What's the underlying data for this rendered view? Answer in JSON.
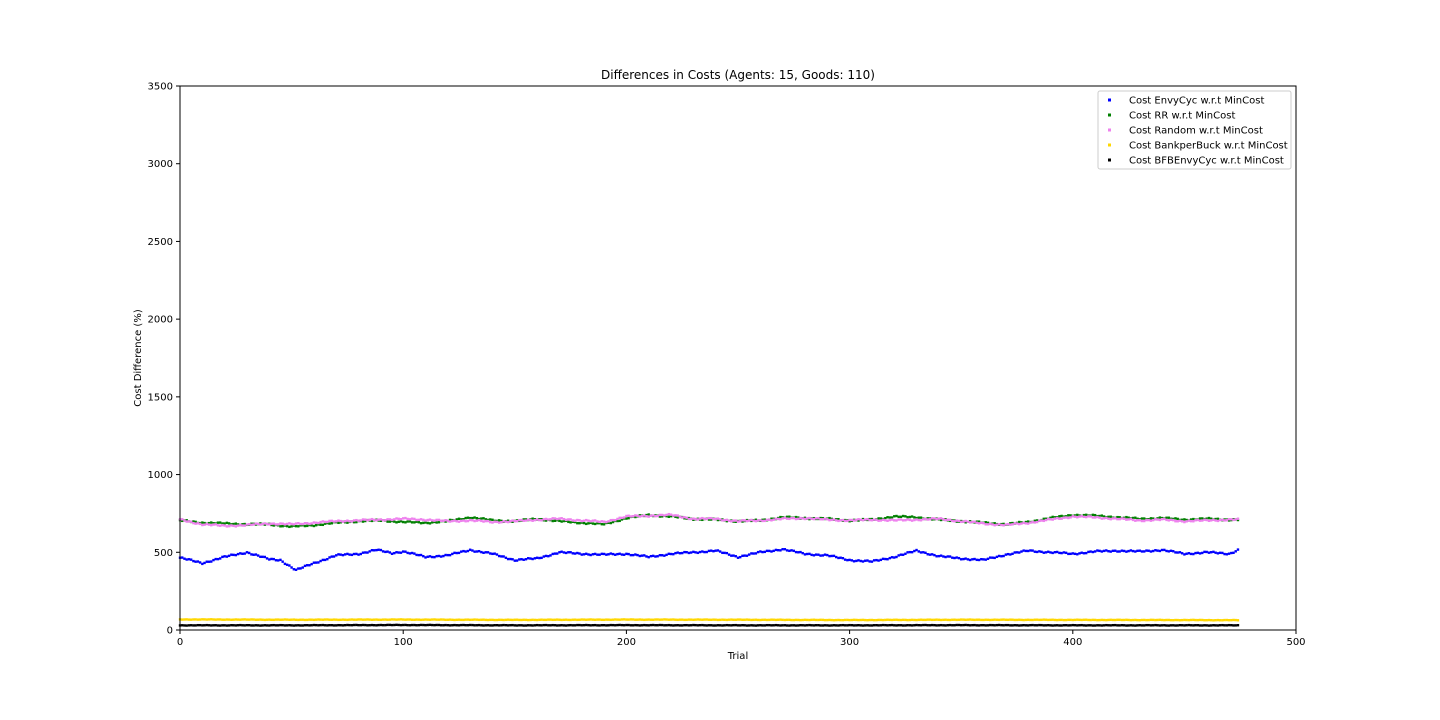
{
  "chart_data": {
    "type": "scatter",
    "title": "Differences in Costs (Agents: 15, Goods: 110)",
    "xlabel": "Trial",
    "ylabel": "Cost Difference (%)",
    "xlim": [
      0,
      500
    ],
    "ylim": [
      0,
      3500
    ],
    "xticks": [
      0,
      100,
      200,
      300,
      400,
      500
    ],
    "yticks": [
      0,
      500,
      1000,
      1500,
      2000,
      2500,
      3000,
      3500
    ],
    "grid": false,
    "legend_position": "top-right",
    "n_trials": 475,
    "series": [
      {
        "name": "Cost EnvyCyc w.r.t MinCost",
        "color": "#0000ff",
        "profile_x": [
          0,
          10,
          20,
          30,
          40,
          45,
          52,
          60,
          70,
          80,
          88,
          95,
          100,
          110,
          120,
          130,
          140,
          150,
          160,
          170,
          180,
          190,
          200,
          210,
          220,
          230,
          240,
          250,
          260,
          270,
          280,
          290,
          300,
          310,
          320,
          330,
          340,
          350,
          360,
          370,
          380,
          390,
          400,
          410,
          420,
          430,
          440,
          450,
          460,
          470,
          474
        ],
        "profile_y": [
          465,
          430,
          470,
          500,
          455,
          450,
          385,
          430,
          480,
          490,
          515,
          495,
          505,
          470,
          480,
          515,
          490,
          450,
          460,
          500,
          490,
          485,
          490,
          470,
          490,
          500,
          510,
          470,
          500,
          520,
          490,
          480,
          450,
          440,
          470,
          510,
          475,
          460,
          450,
          485,
          510,
          500,
          490,
          505,
          510,
          505,
          515,
          490,
          500,
          490,
          515
        ]
      },
      {
        "name": "Cost RR w.r.t MinCost",
        "color": "#008000",
        "profile_x": [
          0,
          10,
          20,
          30,
          40,
          50,
          60,
          70,
          80,
          90,
          100,
          110,
          120,
          130,
          140,
          150,
          160,
          170,
          180,
          190,
          200,
          210,
          220,
          230,
          240,
          250,
          260,
          270,
          280,
          290,
          300,
          310,
          320,
          330,
          340,
          350,
          360,
          370,
          380,
          390,
          400,
          410,
          420,
          430,
          440,
          450,
          460,
          470,
          474
        ],
        "profile_y": [
          705,
          690,
          685,
          680,
          680,
          665,
          675,
          690,
          700,
          705,
          695,
          690,
          700,
          725,
          705,
          700,
          715,
          700,
          690,
          680,
          720,
          740,
          730,
          715,
          710,
          700,
          705,
          725,
          720,
          715,
          705,
          710,
          730,
          725,
          710,
          700,
          690,
          680,
          695,
          720,
          740,
          735,
          725,
          715,
          720,
          710,
          715,
          710,
          710
        ]
      },
      {
        "name": "Cost Random w.r.t MinCost",
        "color": "#ee82ee",
        "profile_x": [
          0,
          10,
          20,
          30,
          40,
          50,
          60,
          70,
          80,
          90,
          100,
          110,
          120,
          130,
          140,
          150,
          160,
          170,
          180,
          190,
          200,
          210,
          220,
          230,
          240,
          250,
          260,
          270,
          280,
          290,
          300,
          310,
          320,
          330,
          340,
          350,
          360,
          370,
          380,
          390,
          400,
          410,
          420,
          430,
          440,
          450,
          460,
          470,
          474
        ],
        "profile_y": [
          710,
          680,
          670,
          675,
          685,
          680,
          690,
          700,
          705,
          710,
          715,
          710,
          700,
          705,
          695,
          700,
          710,
          715,
          705,
          695,
          730,
          735,
          740,
          715,
          715,
          700,
          705,
          715,
          720,
          710,
          705,
          710,
          705,
          710,
          715,
          700,
          685,
          675,
          690,
          710,
          730,
          725,
          715,
          705,
          710,
          700,
          705,
          710,
          710
        ]
      },
      {
        "name": "Cost BankperBuck w.r.t MinCost",
        "color": "#ffd700",
        "profile_x": [
          0,
          50,
          100,
          150,
          200,
          250,
          300,
          350,
          400,
          450,
          474
        ],
        "profile_y": [
          68,
          66,
          67,
          65,
          67,
          66,
          64,
          66,
          65,
          64,
          63
        ]
      },
      {
        "name": "Cost BFBEnvyCyc w.r.t MinCost",
        "color": "#000000",
        "profile_x": [
          0,
          50,
          100,
          150,
          200,
          250,
          300,
          350,
          400,
          450,
          474
        ],
        "profile_y": [
          30,
          30,
          32,
          30,
          31,
          30,
          30,
          31,
          30,
          30,
          30
        ]
      }
    ]
  }
}
